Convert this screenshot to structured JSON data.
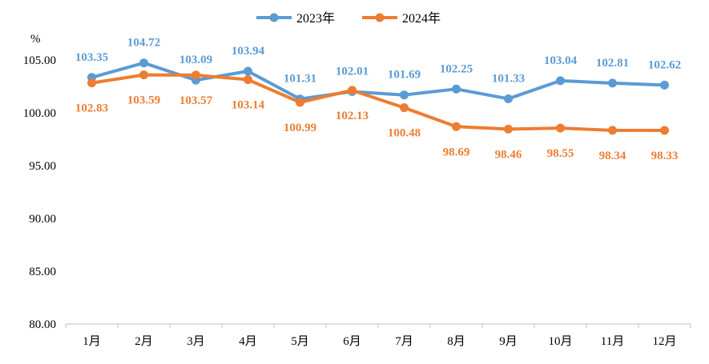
{
  "chart_data": {
    "type": "line",
    "title": "",
    "xlabel": "",
    "ylabel": "%",
    "ylim": [
      80,
      105
    ],
    "yticks": [
      "80.00",
      "85.00",
      "90.00",
      "95.00",
      "100.00",
      "105.00"
    ],
    "grid": false,
    "legend_position": "top-center",
    "categories": [
      "1月",
      "2月",
      "3月",
      "4月",
      "5月",
      "6月",
      "7月",
      "8月",
      "9月",
      "10月",
      "11月",
      "12月"
    ],
    "series": [
      {
        "name": "2023年",
        "color": "#5B9BD5",
        "values": [
          103.35,
          104.72,
          103.09,
          103.94,
          101.31,
          102.01,
          101.69,
          102.25,
          101.33,
          103.04,
          102.81,
          102.62
        ],
        "labels": [
          "103.35",
          "104.72",
          "103.09",
          "103.94",
          "101.31",
          "102.01",
          "101.69",
          "102.25",
          "101.33",
          "103.04",
          "102.81",
          "102.62"
        ],
        "label_position": "above"
      },
      {
        "name": "2024年",
        "color": "#ED7D31",
        "values": [
          102.83,
          103.59,
          103.57,
          103.14,
          100.99,
          102.13,
          100.48,
          98.69,
          98.46,
          98.55,
          98.34,
          98.33
        ],
        "labels": [
          "102.83",
          "103.59",
          "103.57",
          "103.14",
          "100.99",
          "102.13",
          "100.48",
          "98.69",
          "98.46",
          "98.55",
          "98.34",
          "98.33"
        ],
        "label_position": "below"
      }
    ]
  }
}
